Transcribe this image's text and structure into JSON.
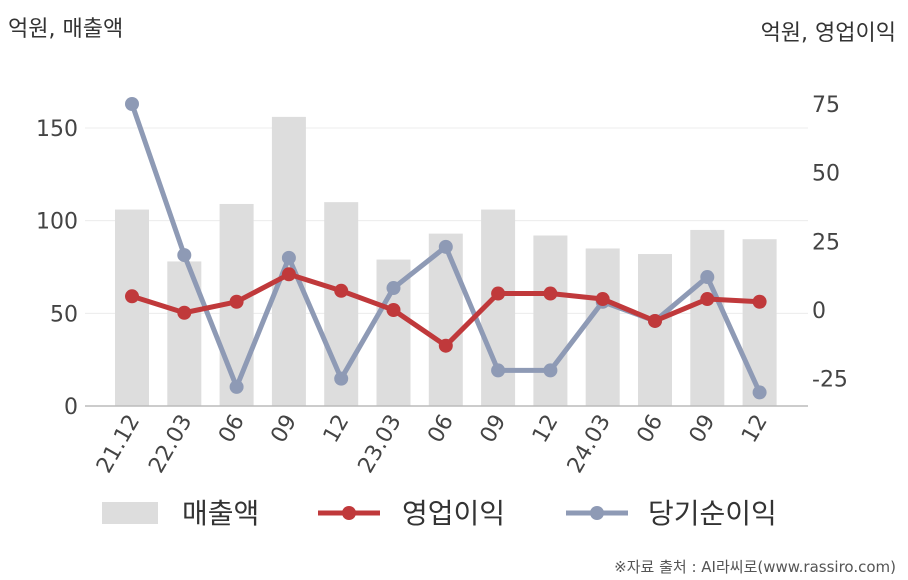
{
  "chart_data": {
    "type": "bar",
    "categories": [
      "21.12",
      "22.03",
      "06",
      "09",
      "12",
      "23.03",
      "06",
      "09",
      "12",
      "24.03",
      "06",
      "09",
      "12"
    ],
    "left_axis": {
      "label": "억원, 매출액",
      "ticks": [
        0,
        50,
        100,
        150
      ],
      "ylim": [
        0,
        175
      ]
    },
    "right_axis": {
      "label": "억원, 영업이익",
      "ticks": [
        -25,
        0,
        25,
        50,
        75
      ],
      "ylim": [
        -35,
        82
      ]
    },
    "series": [
      {
        "name": "매출액",
        "type": "bar",
        "axis": "left",
        "color": "#dddddd",
        "values": [
          106,
          78,
          109,
          156,
          110,
          79,
          93,
          106,
          92,
          85,
          82,
          95,
          90
        ]
      },
      {
        "name": "영업이익",
        "type": "line",
        "axis": "right",
        "color": "#c0393b",
        "values": [
          5,
          -1,
          3,
          13,
          7,
          0,
          -13,
          6,
          6,
          4,
          -4,
          4,
          3
        ]
      },
      {
        "name": "당기순이익",
        "type": "line",
        "axis": "right",
        "color": "#8e9ab5",
        "values": [
          75,
          20,
          -28,
          19,
          -25,
          8,
          23,
          -22,
          -22,
          3,
          -4,
          12,
          -30
        ]
      }
    ],
    "grid": true,
    "legend": "bottom"
  },
  "source_note": "※자료 출처 : AI라씨로(www.rassiro.com)"
}
